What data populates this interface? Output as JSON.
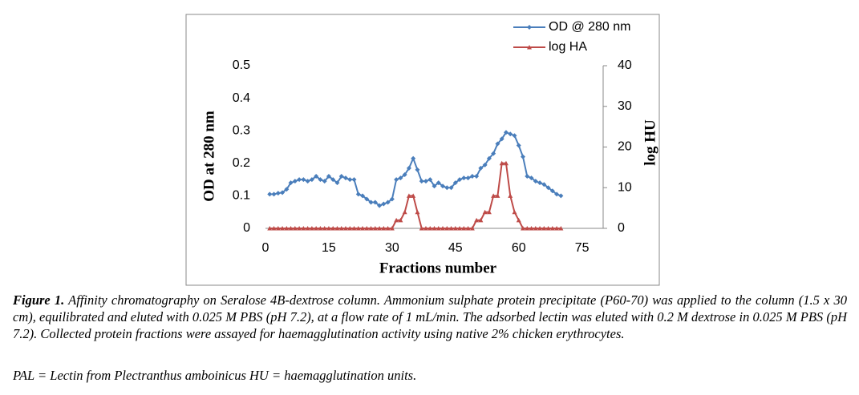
{
  "chart_data": {
    "type": "line",
    "x_label": "Fractions number",
    "y_label": "OD at 280 nm",
    "y2_label": "log HU",
    "x": [
      1,
      2,
      3,
      4,
      5,
      6,
      7,
      8,
      9,
      10,
      11,
      12,
      13,
      14,
      15,
      16,
      17,
      18,
      19,
      20,
      21,
      22,
      23,
      24,
      25,
      26,
      27,
      28,
      29,
      30,
      31,
      32,
      33,
      34,
      35,
      36,
      37,
      38,
      39,
      40,
      41,
      42,
      43,
      44,
      45,
      46,
      47,
      48,
      49,
      50,
      51,
      52,
      53,
      54,
      55,
      56,
      57,
      58,
      59,
      60,
      61,
      62,
      63,
      64,
      65,
      66,
      67,
      68,
      69,
      70
    ],
    "series": [
      {
        "name": "OD @ 280 nm",
        "color": "#4a7ebb",
        "marker": "diamond",
        "values": [
          0.105,
          0.105,
          0.108,
          0.11,
          0.12,
          0.14,
          0.145,
          0.15,
          0.15,
          0.145,
          0.15,
          0.16,
          0.15,
          0.145,
          0.16,
          0.15,
          0.14,
          0.16,
          0.155,
          0.15,
          0.15,
          0.105,
          0.1,
          0.09,
          0.08,
          0.08,
          0.07,
          0.075,
          0.08,
          0.09,
          0.15,
          0.155,
          0.165,
          0.185,
          0.215,
          0.18,
          0.145,
          0.145,
          0.15,
          0.13,
          0.14,
          0.13,
          0.125,
          0.125,
          0.14,
          0.15,
          0.155,
          0.155,
          0.16,
          0.16,
          0.185,
          0.195,
          0.215,
          0.23,
          0.26,
          0.275,
          0.295,
          0.29,
          0.285,
          0.255,
          0.22,
          0.16,
          0.155,
          0.145,
          0.14,
          0.135,
          0.125,
          0.115,
          0.105,
          0.1
        ]
      },
      {
        "name": "log HA",
        "color": "#be4b48",
        "marker": "triangle",
        "axis": "y2",
        "values": [
          0,
          0,
          0,
          0,
          0,
          0,
          0,
          0,
          0,
          0,
          0,
          0,
          0,
          0,
          0,
          0,
          0,
          0,
          0,
          0,
          0,
          0,
          0,
          0,
          0,
          0,
          0,
          0,
          0,
          0,
          2,
          2,
          4,
          8,
          8,
          4,
          0,
          0,
          0,
          0,
          0,
          0,
          0,
          0,
          0,
          0,
          0,
          0,
          0,
          2,
          2,
          4,
          4,
          8,
          8,
          16,
          16,
          8,
          4,
          2,
          0,
          0,
          0,
          0,
          0,
          0,
          0,
          0,
          0,
          0
        ]
      }
    ],
    "xlim": [
      0,
      80
    ],
    "xticks": [
      0,
      15,
      30,
      45,
      60,
      75
    ],
    "ylim": [
      0,
      0.5
    ],
    "yticks": [
      0,
      0.1,
      0.2,
      0.3,
      0.4,
      0.5
    ],
    "y2lim": [
      0,
      40
    ],
    "y2ticks": [
      0,
      10,
      20,
      30,
      40
    ],
    "legend": "top-right",
    "grid": false
  },
  "caption": {
    "label": "Figure 1.",
    "text": "Affinity chromatography on Seralose 4B-dextrose column. Ammonium sulphate protein precipitate (P60-70) was applied to the column (1.5 x 30 cm), equilibrated and eluted with 0.025 M PBS (pH 7.2), at a flow rate of 1 mL/min. The adsorbed lectin was eluted with 0.2 M dextrose in 0.025 M PBS (pH 7.2). Collected protein fractions were assayed for haemagglutination activity using native 2% chicken erythrocytes.",
    "note": "PAL = Lectin from Plectranthus amboinicus HU = haemagglutination units."
  }
}
